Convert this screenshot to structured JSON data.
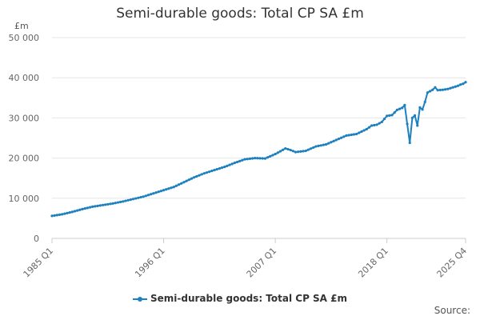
{
  "chart_data": {
    "type": "line",
    "title": "Semi-durable goods: Total CP SA £m",
    "ylabel": "£m",
    "xlabel": "",
    "source_label": "Source:",
    "ylim": [
      0,
      50000
    ],
    "y_ticks": [
      0,
      10000,
      20000,
      30000,
      40000,
      50000
    ],
    "y_tick_labels": [
      "0",
      "10 000",
      "20 000",
      "30 000",
      "40 000",
      "50 000"
    ],
    "x_tick_labels": [
      "1985 Q1",
      "1996 Q1",
      "2007 Q1",
      "2018 Q1",
      "2025 Q4"
    ],
    "grid": true,
    "legend": "bottom",
    "color": "#1d80bf",
    "series": [
      {
        "name": "Semi-durable goods: Total CP SA £m",
        "points": [
          [
            "1985 Q1",
            5600
          ],
          [
            "1986 Q1",
            6000
          ],
          [
            "1987 Q1",
            6600
          ],
          [
            "1988 Q1",
            7300
          ],
          [
            "1989 Q1",
            7900
          ],
          [
            "1990 Q1",
            8300
          ],
          [
            "1991 Q1",
            8700
          ],
          [
            "1992 Q1",
            9200
          ],
          [
            "1993 Q1",
            9800
          ],
          [
            "1994 Q1",
            10400
          ],
          [
            "1995 Q1",
            11200
          ],
          [
            "1996 Q1",
            12000
          ],
          [
            "1997 Q1",
            12800
          ],
          [
            "1998 Q1",
            14000
          ],
          [
            "1999 Q1",
            15200
          ],
          [
            "2000 Q1",
            16200
          ],
          [
            "2001 Q1",
            17000
          ],
          [
            "2002 Q1",
            17800
          ],
          [
            "2003 Q1",
            18800
          ],
          [
            "2004 Q1",
            19700
          ],
          [
            "2005 Q1",
            20000
          ],
          [
            "2006 Q1",
            19900
          ],
          [
            "2007 Q1",
            21000
          ],
          [
            "2008 Q1",
            22400
          ],
          [
            "2008 Q3",
            22000
          ],
          [
            "2009 Q1",
            21500
          ],
          [
            "2010 Q1",
            21800
          ],
          [
            "2011 Q1",
            22900
          ],
          [
            "2012 Q1",
            23400
          ],
          [
            "2013 Q1",
            24500
          ],
          [
            "2014 Q1",
            25600
          ],
          [
            "2015 Q1",
            26000
          ],
          [
            "2016 Q1",
            27200
          ],
          [
            "2016 Q3",
            28100
          ],
          [
            "2017 Q1",
            28300
          ],
          [
            "2017 Q3",
            29000
          ],
          [
            "2018 Q1",
            30500
          ],
          [
            "2018 Q3",
            30700
          ],
          [
            "2019 Q1",
            32000
          ],
          [
            "2019 Q3",
            32500
          ],
          [
            "2019 Q4",
            33200
          ],
          [
            "2020 Q1",
            28500
          ],
          [
            "2020 Q2",
            23800
          ],
          [
            "2020 Q3",
            30000
          ],
          [
            "2020 Q4",
            30600
          ],
          [
            "2021 Q1",
            28100
          ],
          [
            "2021 Q2",
            32600
          ],
          [
            "2021 Q3",
            32100
          ],
          [
            "2021 Q4",
            34000
          ],
          [
            "2022 Q1",
            36300
          ],
          [
            "2022 Q3",
            37000
          ],
          [
            "2022 Q4",
            37600
          ],
          [
            "2023 Q1",
            36900
          ],
          [
            "2023 Q3",
            37000
          ],
          [
            "2024 Q1",
            37200
          ],
          [
            "2024 Q3",
            37600
          ],
          [
            "2025 Q1",
            38000
          ],
          [
            "2025 Q2",
            38300
          ],
          [
            "2025 Q3",
            38500
          ],
          [
            "2025 Q4",
            38900
          ]
        ]
      }
    ]
  }
}
